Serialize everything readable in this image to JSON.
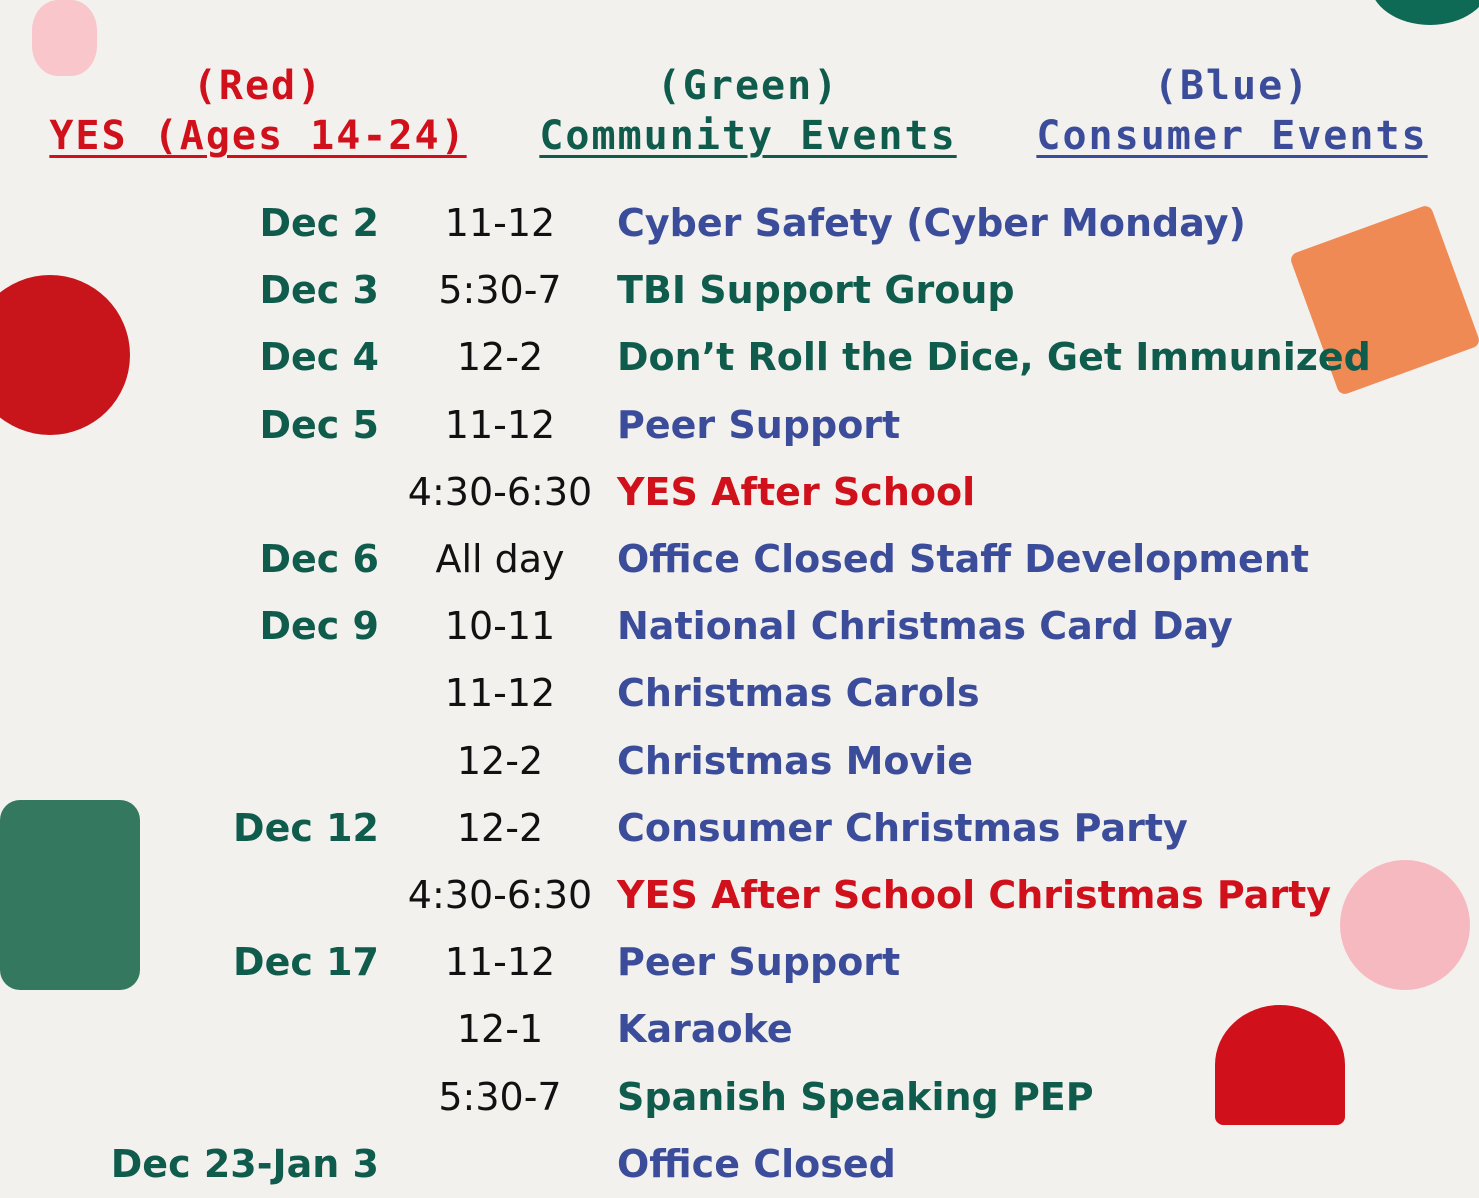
{
  "legend": [
    {
      "color_label": "(Red)",
      "label": "YES (Ages 14-24)",
      "color": "#d0101a"
    },
    {
      "color_label": "(Green)",
      "label": "Community Events",
      "color": "#0f5c4d"
    },
    {
      "color_label": "(Blue)",
      "label": "Consumer Events",
      "color": "#3b4d9a"
    }
  ],
  "colors": {
    "red": "#d0101a",
    "green": "#0f5c4d",
    "blue": "#3b4d9a",
    "time": "#111111"
  },
  "events": [
    {
      "date": "Dec 2",
      "time": "11-12",
      "title": "Cyber Safety (Cyber Monday)",
      "category": "blue"
    },
    {
      "date": "Dec 3",
      "time": "5:30-7",
      "title": "TBI Support Group",
      "category": "green"
    },
    {
      "date": "Dec 4",
      "time": "12-2",
      "title": "Don’t Roll the Dice, Get Immunized",
      "category": "green"
    },
    {
      "date": "Dec 5",
      "time": "11-12",
      "title": "Peer Support",
      "category": "blue"
    },
    {
      "date": "",
      "time": "4:30-6:30",
      "title": "YES After School",
      "category": "red"
    },
    {
      "date": "Dec 6",
      "time": "All day",
      "title": "Office Closed Staff Development",
      "category": "blue"
    },
    {
      "date": "Dec 9",
      "time": "10-11",
      "title": "National Christmas Card Day",
      "category": "blue"
    },
    {
      "date": "",
      "time": "11-12",
      "title": "Christmas Carols",
      "category": "blue"
    },
    {
      "date": "",
      "time": "12-2",
      "title": "Christmas Movie",
      "category": "blue"
    },
    {
      "date": "Dec 12",
      "time": "12-2",
      "title": "Consumer Christmas Party",
      "category": "blue"
    },
    {
      "date": "",
      "time": "4:30-6:30",
      "title": "YES After School Christmas Party",
      "category": "red"
    },
    {
      "date": "Dec 17",
      "time": "11-12",
      "title": "Peer Support",
      "category": "blue"
    },
    {
      "date": "",
      "time": "12-1",
      "title": "Karaoke",
      "category": "blue"
    },
    {
      "date": "",
      "time": "5:30-7",
      "title": "Spanish Speaking PEP",
      "category": "green"
    },
    {
      "date": "Dec 23-Jan 3",
      "time": "",
      "title": "Office Closed",
      "category": "blue"
    }
  ]
}
